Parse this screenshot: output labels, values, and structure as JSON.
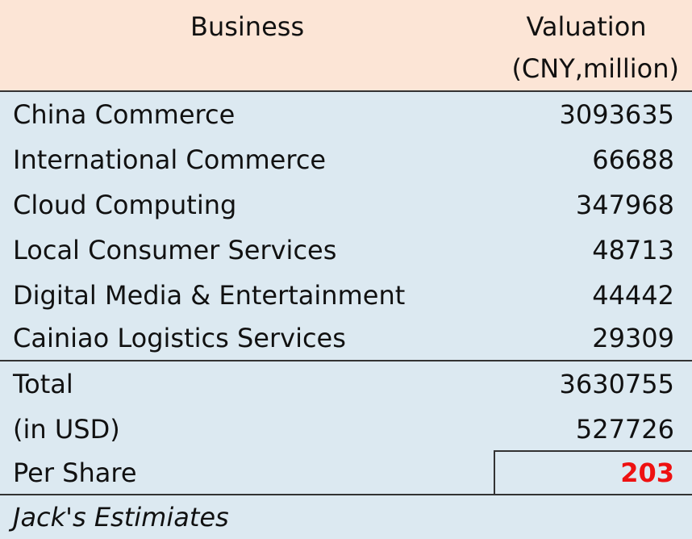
{
  "table": {
    "header": {
      "business_label": "Business",
      "valuation_label": "Valuation",
      "unit_label": "(CNY,million)"
    },
    "segments": [
      {
        "label": "China Commerce",
        "value": "3093635"
      },
      {
        "label": "International Commerce",
        "value": "66688"
      },
      {
        "label": "Cloud Computing",
        "value": "347968"
      },
      {
        "label": "Local Consumer Services",
        "value": "48713"
      },
      {
        "label": "Digital Media & Entertainment",
        "value": "44442"
      },
      {
        "label": "Cainiao Logistics Services",
        "value": "29309"
      }
    ],
    "summary": [
      {
        "label": "Total",
        "value": "3630755"
      },
      {
        "label": "(in USD)",
        "value": "527726"
      },
      {
        "label": "Per Share",
        "value": "203"
      }
    ],
    "footnote": "Jack's Estimiates"
  },
  "colors": {
    "header_bg": "#fce5d6",
    "body_bg": "#dce9f1",
    "highlight_value": "#ee1111",
    "border": "#333333"
  }
}
